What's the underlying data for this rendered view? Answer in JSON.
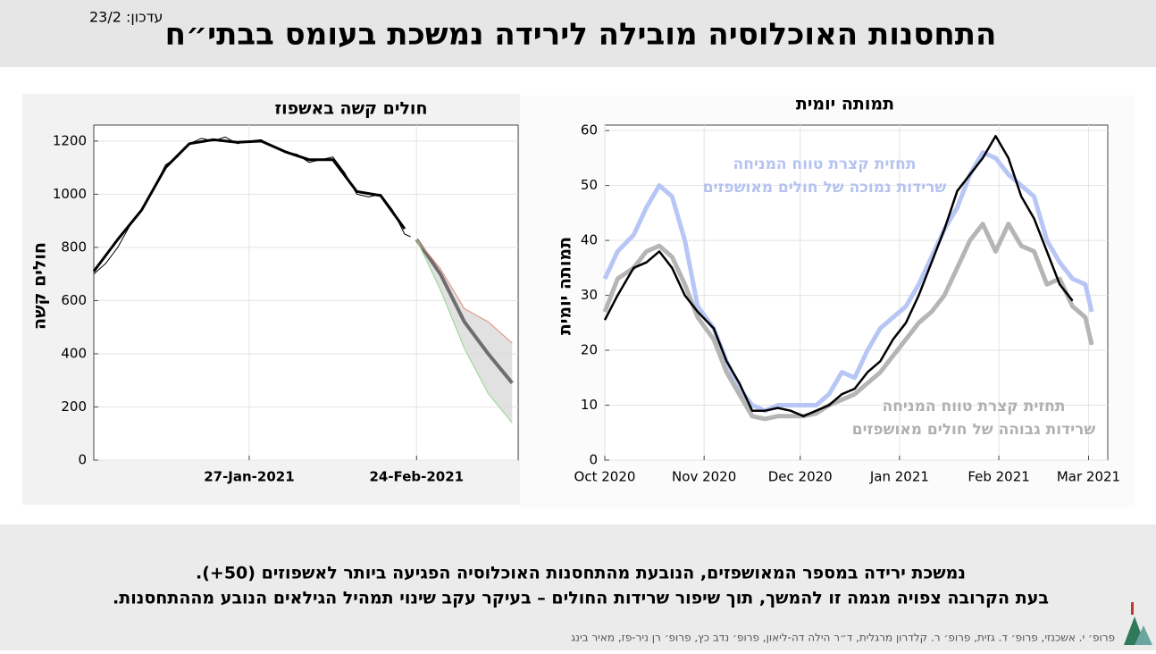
{
  "header": {
    "title": "התחסנות האוכלוסיה מובילה לירידה נמשכת בעומס בבתי״ח",
    "update": "עדכון: 23/2"
  },
  "chart_data": [
    {
      "type": "line",
      "title": "חולים קשה באשפוז",
      "ylabel": "חולים קשה",
      "xlim": [
        "2021-01-01",
        "2021-03-13"
      ],
      "xticks": [
        {
          "value": "2021-01-27",
          "label": "27-Jan-2021"
        },
        {
          "value": "2021-02-24",
          "label": "24-Feb-2021"
        }
      ],
      "ylim": [
        0,
        1260
      ],
      "yticks": [
        0,
        200,
        400,
        600,
        800,
        1000,
        1200
      ],
      "grid": true,
      "band_color": "#d9d9d9",
      "series": [
        {
          "color": "#000000",
          "linewidth": 1,
          "x": [
            "2021-01-01",
            "2021-01-03",
            "2021-01-05",
            "2021-01-07",
            "2021-01-09",
            "2021-01-11",
            "2021-01-13",
            "2021-01-15",
            "2021-01-17",
            "2021-01-19",
            "2021-01-21",
            "2021-01-23",
            "2021-01-25",
            "2021-01-27",
            "2021-01-29",
            "2021-01-31",
            "2021-02-02",
            "2021-02-04",
            "2021-02-06",
            "2021-02-08",
            "2021-02-10",
            "2021-02-12",
            "2021-02-14",
            "2021-02-16",
            "2021-02-18",
            "2021-02-20",
            "2021-02-22",
            "2021-02-23"
          ],
          "values": [
            700,
            740,
            800,
            880,
            940,
            1020,
            1110,
            1140,
            1190,
            1210,
            1200,
            1215,
            1190,
            1200,
            1205,
            1180,
            1160,
            1150,
            1120,
            1130,
            1140,
            1080,
            1000,
            990,
            1000,
            940,
            850,
            840
          ]
        },
        {
          "color": "#000000",
          "linewidth": 3,
          "x": [
            "2021-01-01",
            "2021-01-05",
            "2021-01-09",
            "2021-01-13",
            "2021-01-17",
            "2021-01-21",
            "2021-01-25",
            "2021-01-29",
            "2021-02-02",
            "2021-02-06",
            "2021-02-10",
            "2021-02-14",
            "2021-02-18",
            "2021-02-22"
          ],
          "values": [
            710,
            830,
            940,
            1100,
            1190,
            1205,
            1195,
            1200,
            1160,
            1130,
            1130,
            1010,
            995,
            870
          ]
        },
        {
          "color": "#6e6e6e",
          "linewidth": 4,
          "x": [
            "2021-02-24",
            "2021-02-28",
            "2021-03-04",
            "2021-03-08",
            "2021-03-12"
          ],
          "values": [
            830,
            700,
            520,
            400,
            290
          ]
        },
        {
          "color": "#e08a80",
          "linewidth": 1,
          "x": [
            "2021-02-24",
            "2021-02-28",
            "2021-03-04",
            "2021-03-08",
            "2021-03-12"
          ],
          "values": [
            830,
            720,
            570,
            520,
            440
          ]
        },
        {
          "color": "#8fd98a",
          "linewidth": 1,
          "x": [
            "2021-02-24",
            "2021-02-28",
            "2021-03-04",
            "2021-03-08",
            "2021-03-12"
          ],
          "values": [
            830,
            640,
            420,
            250,
            140
          ]
        }
      ]
    },
    {
      "type": "line",
      "title": "תמותה יומית",
      "ylabel": "תמותה יומית",
      "xlim": [
        "2020-10-01",
        "2021-03-07"
      ],
      "xticks": [
        {
          "value": "2020-10-01",
          "label": "Oct 2020"
        },
        {
          "value": "2020-11-01",
          "label": "Nov 2020"
        },
        {
          "value": "2020-12-01",
          "label": "Dec 2020"
        },
        {
          "value": "2021-01-01",
          "label": "Jan 2021"
        },
        {
          "value": "2021-02-01",
          "label": "Feb 2021"
        },
        {
          "value": "2021-03-01",
          "label": "Mar 2021"
        }
      ],
      "ylim": [
        0,
        61
      ],
      "yticks": [
        0,
        10,
        20,
        30,
        40,
        50,
        60
      ],
      "grid": true,
      "x": [
        "2020-10-01",
        "2020-10-05",
        "2020-10-10",
        "2020-10-14",
        "2020-10-18",
        "2020-10-22",
        "2020-10-26",
        "2020-10-30",
        "2020-11-04",
        "2020-11-08",
        "2020-11-12",
        "2020-11-16",
        "2020-11-20",
        "2020-11-24",
        "2020-11-28",
        "2020-12-02",
        "2020-12-06",
        "2020-12-10",
        "2020-12-14",
        "2020-12-18",
        "2020-12-22",
        "2020-12-26",
        "2020-12-30",
        "2021-01-03",
        "2021-01-07",
        "2021-01-11",
        "2021-01-15",
        "2021-01-19",
        "2021-01-23",
        "2021-01-27",
        "2021-01-31",
        "2021-02-04",
        "2021-02-08",
        "2021-02-12",
        "2021-02-16",
        "2021-02-20",
        "2021-02-24",
        "2021-02-28",
        "2021-03-02"
      ],
      "series": [
        {
          "color": "#b7c6f5",
          "linewidth": 5,
          "values": [
            33,
            38,
            41,
            46,
            50,
            48,
            40,
            28,
            24,
            18,
            13,
            10,
            9,
            10,
            10,
            10,
            10,
            12,
            16,
            15,
            20,
            24,
            26,
            28,
            32,
            37,
            42,
            46,
            52,
            56,
            55,
            52,
            50,
            48,
            40,
            36,
            33,
            32,
            27
          ]
        },
        {
          "color": "#b5b5b5",
          "linewidth": 5,
          "values": [
            27,
            33,
            35,
            38,
            39,
            37,
            32,
            26,
            22,
            16,
            12,
            8,
            7.5,
            8,
            8,
            8,
            8.5,
            10,
            11,
            12,
            14,
            16,
            19,
            22,
            25,
            27,
            30,
            35,
            40,
            43,
            38,
            43,
            39,
            38,
            32,
            33,
            28,
            26,
            21
          ]
        },
        {
          "color": "#000000",
          "linewidth": 2.5,
          "values": [
            25.5,
            30,
            35,
            36,
            38,
            35,
            30,
            27,
            24,
            18,
            14,
            9,
            9,
            9.5,
            9,
            8,
            9,
            10,
            12,
            13,
            16,
            18,
            22,
            25,
            30,
            36,
            42,
            49,
            52,
            55,
            59,
            55,
            48,
            44,
            38,
            32,
            29,
            null,
            null
          ]
        }
      ],
      "annotations": [
        {
          "color": "#b4c3f0",
          "lines": [
            "תחזית קצרת טווח המניחה",
            "שרידות נמוכה של חולים מאושפזים"
          ]
        },
        {
          "color": "#b0b0b0",
          "lines": [
            "תחזית קצרת טווח המניחה",
            "שרידות גבוהה של חולים מאושפזים"
          ]
        }
      ]
    }
  ],
  "footer": {
    "lines": [
      "נמשכת ירידה במספר המאושפזים, הנובעת מהתחסנות האוכלוסיה הפגיעה ביותר לאשפוזים (50+).",
      "בעת הקרובה צפויה מגמה זו להמשך, תוך שיפור שרידות החולים – בעיקר עקב שינוי תמהיל הגילאים הנובע מההתחסנות."
    ],
    "credits": "פרופ׳ י. אשכנזי, פרופ׳ ד. גזית, פרופ׳ ר. קלדרון מרגלית, ד״ר הילה דה-ליאון, פרופ׳ נדב כץ, פרופ׳ רן ניר-פז, מאיר בינג"
  }
}
